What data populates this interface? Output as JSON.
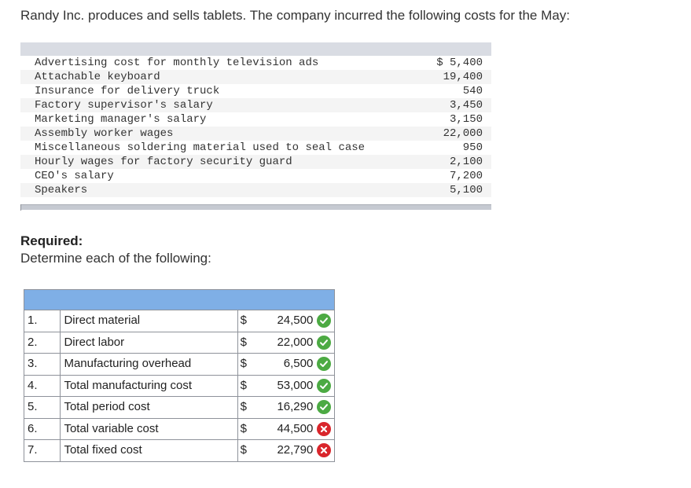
{
  "intro": "Randy Inc. produces and sells tablets. The company incurred the following costs for the May:",
  "costs": [
    {
      "item": "Advertising cost for monthly television ads",
      "amount": "$ 5,400"
    },
    {
      "item": "Attachable keyboard",
      "amount": "19,400"
    },
    {
      "item": "Insurance for delivery truck",
      "amount": "540"
    },
    {
      "item": "Factory supervisor's salary",
      "amount": "3,450"
    },
    {
      "item": "Marketing manager's salary",
      "amount": "3,150"
    },
    {
      "item": "Assembly worker wages",
      "amount": "22,000"
    },
    {
      "item": "Miscellaneous soldering material used to seal case",
      "amount": "950"
    },
    {
      "item": "Hourly wages for factory security guard",
      "amount": "2,100"
    },
    {
      "item": "CEO's salary",
      "amount": "7,200"
    },
    {
      "item": "Speakers",
      "amount": "5,100"
    }
  ],
  "required_heading": "Required:",
  "instruction": "Determine each of the following:",
  "answers": [
    {
      "num": "1.",
      "label": "Direct material",
      "currency": "$",
      "value": "24,500",
      "status": "correct"
    },
    {
      "num": "2.",
      "label": "Direct labor",
      "currency": "$",
      "value": "22,000",
      "status": "correct"
    },
    {
      "num": "3.",
      "label": "Manufacturing overhead",
      "currency": "$",
      "value": "6,500",
      "status": "correct"
    },
    {
      "num": "4.",
      "label": "Total manufacturing cost",
      "currency": "$",
      "value": "53,000",
      "status": "correct"
    },
    {
      "num": "5.",
      "label": "Total period cost",
      "currency": "$",
      "value": "16,290",
      "status": "correct"
    },
    {
      "num": "6.",
      "label": "Total variable cost",
      "currency": "$",
      "value": "44,500",
      "status": "incorrect"
    },
    {
      "num": "7.",
      "label": "Total fixed cost",
      "currency": "$",
      "value": "22,790",
      "status": "incorrect"
    }
  ],
  "colors": {
    "header_blue": "#7fafe6",
    "correct_green": "#4caa43",
    "incorrect_red": "#d9262c"
  }
}
